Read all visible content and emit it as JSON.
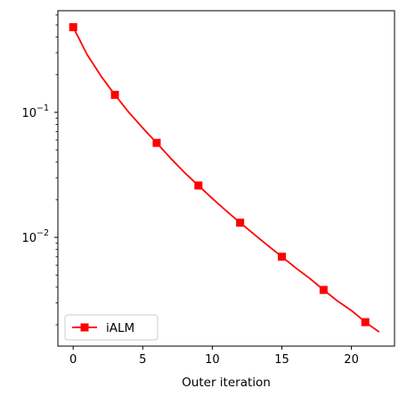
{
  "chart_data": {
    "type": "line",
    "title": "",
    "xlabel": "Outer iteration",
    "ylabel": "",
    "xscale": "linear",
    "yscale": "log",
    "xlim": [
      -1.1,
      23.1
    ],
    "ylim": [
      0.00135,
      0.65
    ],
    "grid": false,
    "legend": {
      "placement": "lower-left",
      "entries": [
        "iALM"
      ]
    },
    "x_ticks": [
      {
        "value": 0,
        "label": "0"
      },
      {
        "value": 5,
        "label": "5"
      },
      {
        "value": 10,
        "label": "10"
      },
      {
        "value": 15,
        "label": "15"
      },
      {
        "value": 20,
        "label": "20"
      }
    ],
    "y_ticks": [
      {
        "value": 0.1,
        "base": "10",
        "exp": "−1"
      },
      {
        "value": 0.01,
        "base": "10",
        "exp": "−2"
      }
    ],
    "series": [
      {
        "name": "iALM",
        "color": "#ff0000",
        "marker": "square",
        "marker_every": 3,
        "x": [
          0,
          1,
          2,
          3,
          4,
          5,
          6,
          7,
          8,
          9,
          10,
          11,
          12,
          13,
          14,
          15,
          16,
          17,
          18,
          19,
          20,
          21,
          22
        ],
        "y": [
          0.48,
          0.29,
          0.195,
          0.138,
          0.1,
          0.075,
          0.057,
          0.043,
          0.033,
          0.026,
          0.0205,
          0.0163,
          0.0131,
          0.0106,
          0.0086,
          0.007,
          0.0057,
          0.0047,
          0.0038,
          0.0031,
          0.0026,
          0.0021,
          0.00175
        ]
      }
    ]
  }
}
